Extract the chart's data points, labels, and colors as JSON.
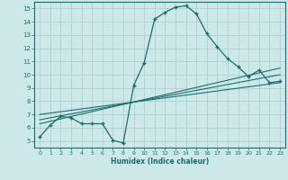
{
  "bg_color": "#cde8e8",
  "grid_color": "#b0d0d0",
  "line_color": "#1a6e6a",
  "xlabel": "Humidex (Indice chaleur)",
  "ylim": [
    4.5,
    15.5
  ],
  "xlim": [
    -0.5,
    23.5
  ],
  "yticks": [
    5,
    6,
    7,
    8,
    9,
    10,
    11,
    12,
    13,
    14,
    15
  ],
  "xticks": [
    0,
    1,
    2,
    3,
    4,
    5,
    6,
    7,
    8,
    9,
    10,
    11,
    12,
    13,
    14,
    15,
    16,
    17,
    18,
    19,
    20,
    21,
    22,
    23
  ],
  "line1_x": [
    0,
    1,
    2,
    3,
    4,
    5,
    6,
    7,
    8,
    9,
    10,
    11,
    12,
    13,
    14,
    15,
    16,
    17,
    18,
    19,
    20,
    21,
    22,
    23
  ],
  "line1_y": [
    5.3,
    6.2,
    6.85,
    6.75,
    6.3,
    6.3,
    6.3,
    5.05,
    4.85,
    9.2,
    10.9,
    14.2,
    14.7,
    15.1,
    15.2,
    14.6,
    13.1,
    12.1,
    11.2,
    10.6,
    9.85,
    10.35,
    9.4,
    9.5
  ],
  "line2_x": [
    0,
    23
  ],
  "line2_y": [
    6.3,
    10.5
  ],
  "line3_x": [
    0,
    23
  ],
  "line3_y": [
    6.6,
    10.0
  ],
  "line4_x": [
    0,
    23
  ],
  "line4_y": [
    7.0,
    9.4
  ]
}
